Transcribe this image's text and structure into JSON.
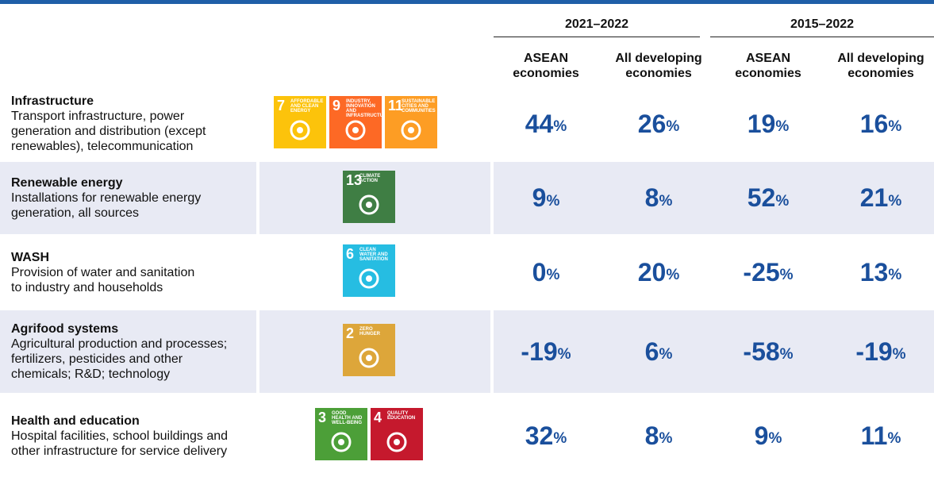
{
  "table": {
    "groups": [
      "2021–2022",
      "2015–2022"
    ],
    "columns": [
      "ASEAN economies",
      "All developing economies",
      "ASEAN economies",
      "All developing economies"
    ],
    "unit": "%",
    "rows": [
      {
        "title": "Infrastructure",
        "description": [
          "Transport infrastructure, power",
          "generation and distribution (except",
          "renewables), telecommunication"
        ],
        "sdgs": [
          {
            "number": "7",
            "label": "AFFORDABLE AND CLEAN ENERGY",
            "color": "#fcc30b"
          },
          {
            "number": "9",
            "label": "INDUSTRY, INNOVATION AND INFRASTRUCTURE",
            "color": "#fd6925"
          },
          {
            "number": "11",
            "label": "SUSTAINABLE CITIES AND COMMUNITIES",
            "color": "#fd9d24"
          }
        ],
        "values": [
          44,
          26,
          19,
          16
        ]
      },
      {
        "title": "Renewable energy",
        "description": [
          "Installations for renewable energy",
          "generation, all sources"
        ],
        "sdgs": [
          {
            "number": "13",
            "label": "CLIMATE ACTION",
            "color": "#3f7e44"
          }
        ],
        "values": [
          9,
          8,
          52,
          21
        ]
      },
      {
        "title": "WASH",
        "description": [
          "Provision of water and sanitation",
          "to industry and households"
        ],
        "sdgs": [
          {
            "number": "6",
            "label": "CLEAN WATER AND SANITATION",
            "color": "#26bde2"
          }
        ],
        "values": [
          0,
          20,
          -25,
          13
        ]
      },
      {
        "title": "Agrifood systems",
        "description": [
          "Agricultural production and processes;",
          "fertilizers, pesticides and other",
          "chemicals; R&D; technology"
        ],
        "sdgs": [
          {
            "number": "2",
            "label": "ZERO HUNGER",
            "color": "#dda63a"
          }
        ],
        "values": [
          -19,
          6,
          -58,
          -19
        ]
      },
      {
        "title": "Health and education",
        "description": [
          "Hospital facilities, school buildings and",
          "other infrastructure for service delivery"
        ],
        "sdgs": [
          {
            "number": "3",
            "label": "GOOD HEALTH AND WELL-BEING",
            "color": "#4c9f38"
          },
          {
            "number": "4",
            "label": "QUALITY EDUCATION",
            "color": "#c5192d"
          }
        ],
        "values": [
          32,
          8,
          9,
          11
        ]
      }
    ]
  }
}
